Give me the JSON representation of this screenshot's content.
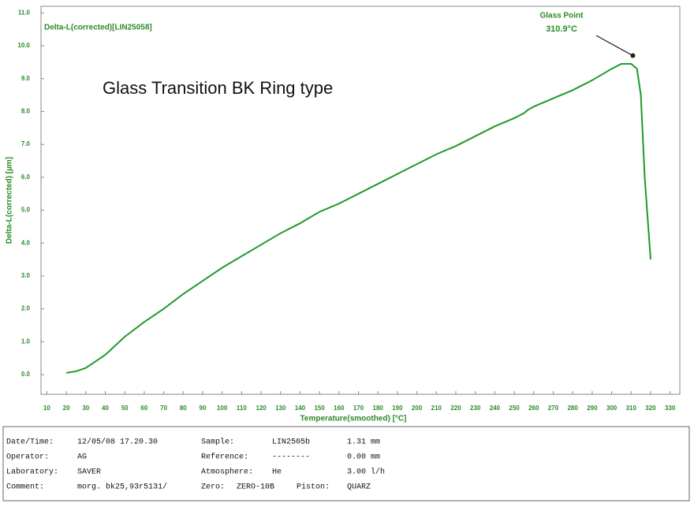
{
  "chart_data": {
    "type": "line",
    "title": "Glass Transition BK Ring type",
    "x_label": "Temperature(smoothed)  [°C]",
    "y_label": "Delta-L(corrected)  [µm]",
    "x": [
      20,
      25,
      30,
      40,
      50,
      60,
      70,
      80,
      90,
      100,
      110,
      120,
      130,
      140,
      150,
      160,
      170,
      180,
      190,
      200,
      210,
      220,
      230,
      240,
      250,
      255,
      257,
      260,
      270,
      280,
      290,
      300,
      305,
      310,
      313,
      315,
      317,
      320
    ],
    "series": [
      {
        "name": "Delta-L(corrected)[LIN25058]",
        "color": "#1f9a2a",
        "values": [
          0.05,
          0.1,
          0.2,
          0.6,
          1.15,
          1.6,
          2.0,
          2.45,
          2.85,
          3.25,
          3.6,
          3.95,
          4.3,
          4.6,
          4.95,
          5.2,
          5.5,
          5.8,
          6.1,
          6.4,
          6.7,
          6.95,
          7.25,
          7.55,
          7.8,
          7.95,
          8.05,
          8.15,
          8.4,
          8.65,
          8.95,
          9.3,
          9.45,
          9.45,
          9.3,
          8.5,
          6.0,
          3.5
        ]
      }
    ],
    "annotation": {
      "label": "Glass Point",
      "value_label": "310.9°C",
      "x": 310.9,
      "y": 9.7
    },
    "xlim": [
      7,
      335
    ],
    "ylim": [
      -0.6,
      11.2
    ],
    "xticks": [
      10,
      20,
      30,
      40,
      50,
      60,
      70,
      80,
      90,
      100,
      110,
      120,
      130,
      140,
      150,
      160,
      170,
      180,
      190,
      200,
      210,
      220,
      230,
      240,
      250,
      260,
      270,
      280,
      290,
      300,
      310,
      320,
      330
    ],
    "yticks": [
      {
        "value": 0,
        "label": "0.0"
      },
      {
        "value": 1,
        "label": "1.0"
      },
      {
        "value": 2,
        "label": "2.0"
      },
      {
        "value": 3,
        "label": "3.0"
      },
      {
        "value": 4,
        "label": "4.0"
      },
      {
        "value": 5,
        "label": "5.0"
      },
      {
        "value": 6,
        "label": "6.0"
      },
      {
        "value": 7,
        "label": "7.0"
      },
      {
        "value": 8,
        "label": "8.0"
      },
      {
        "value": 9,
        "label": "9.0"
      },
      {
        "value": 10,
        "label": "10.0"
      },
      {
        "value": 11,
        "label": "11.0"
      }
    ]
  },
  "info_table": {
    "rows": [
      [
        "Date/Time:",
        "12/05/08  17.20.30",
        "Sample:",
        "LIN2505b",
        "1.31 mm"
      ],
      [
        "Operator:",
        "AG",
        "Reference:",
        "--------",
        "0.00 mm"
      ],
      [
        "Laboratory:",
        "SAVER",
        "Atmosphere:",
        "He",
        "3.00 l/h"
      ],
      [
        "Comment:",
        "morg. bk25,93r5131/",
        "Zero:",
        "ZERO-10B",
        "Piston:",
        "QUARZ"
      ]
    ]
  }
}
